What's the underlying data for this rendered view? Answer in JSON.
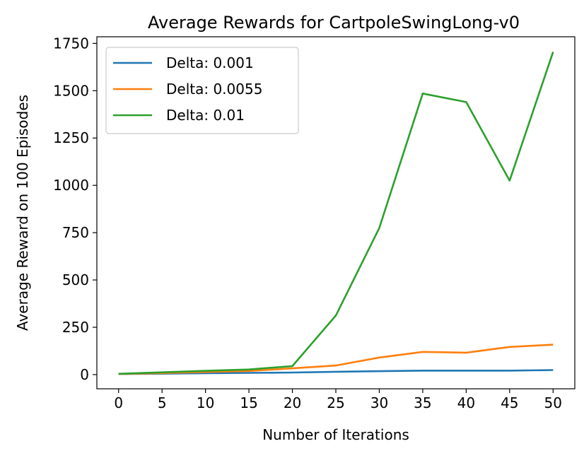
{
  "chart_data": {
    "type": "line",
    "title": "Average Rewards for CartpoleSwingLong-v0",
    "xlabel": "Number of Iterations",
    "ylabel": "Average Reward on 100 Episodes",
    "x": [
      0,
      5,
      10,
      15,
      20,
      25,
      30,
      35,
      40,
      45,
      50
    ],
    "xlim": [
      -2.5,
      52.5
    ],
    "ylim": [
      -75,
      1785
    ],
    "xticks": [
      0,
      5,
      10,
      15,
      20,
      25,
      30,
      35,
      40,
      45,
      50
    ],
    "yticks": [
      0,
      250,
      500,
      750,
      1000,
      1250,
      1500,
      1750
    ],
    "grid": false,
    "legend_position": "top-left",
    "series": [
      {
        "name": "Delta: 0.001",
        "color": "#1f77b4",
        "values": [
          3,
          5,
          7,
          9,
          11,
          15,
          18,
          21,
          21,
          21,
          24
        ]
      },
      {
        "name": "Delta: 0.0055",
        "color": "#ff7f0e",
        "values": [
          3,
          8,
          14,
          19,
          33,
          48,
          90,
          120,
          116,
          146,
          158
        ]
      },
      {
        "name": "Delta: 0.01",
        "color": "#2ca02c",
        "values": [
          4,
          12,
          20,
          27,
          45,
          312,
          775,
          1485,
          1440,
          1025,
          1705
        ]
      }
    ]
  }
}
